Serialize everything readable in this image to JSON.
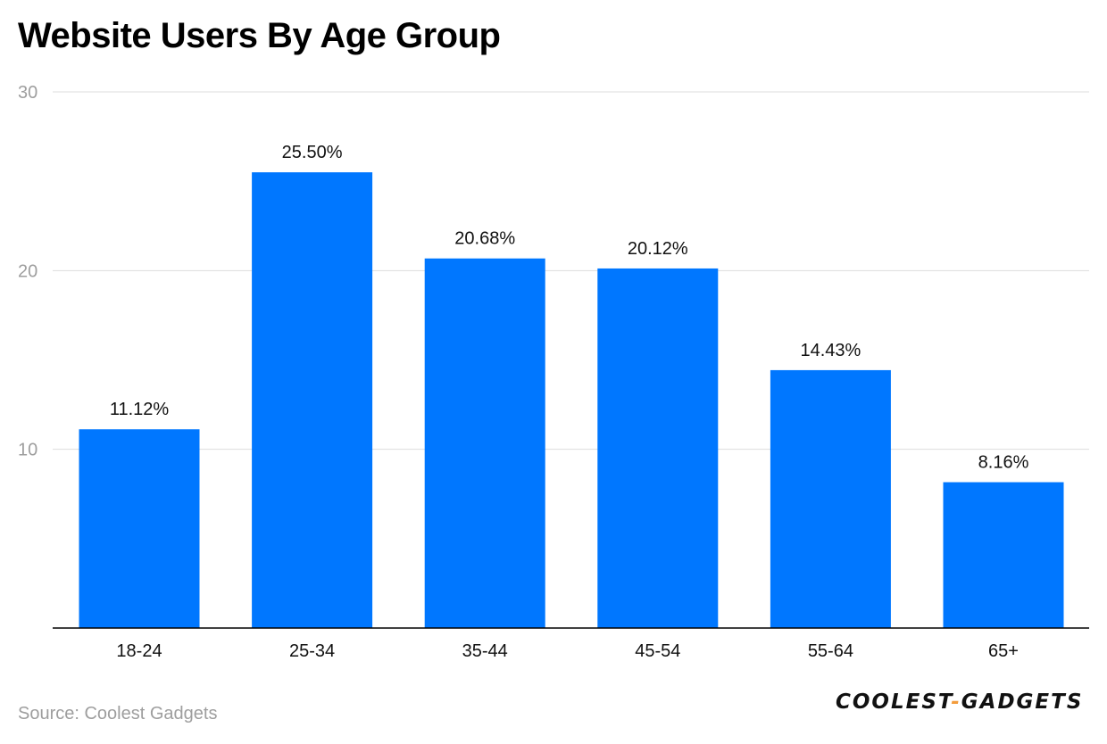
{
  "chart_data": {
    "type": "bar",
    "title": "Website Users By Age Group",
    "categories": [
      "18-24",
      "25-34",
      "35-44",
      "45-54",
      "55-64",
      "65+"
    ],
    "values": [
      11.12,
      25.5,
      20.68,
      20.12,
      14.43,
      8.16
    ],
    "value_labels": [
      "11.12%",
      "25.50%",
      "20.68%",
      "20.12%",
      "14.43%",
      "8.16%"
    ],
    "xlabel": "",
    "ylabel": "",
    "ylim": [
      0,
      30
    ],
    "yticks": [
      10,
      20,
      30
    ],
    "ytick_labels": [
      "10",
      "20",
      "30"
    ],
    "grid": true,
    "legend": "none",
    "bar_color": "#0077ff"
  },
  "footer": {
    "source": "Source: Coolest Gadgets"
  },
  "logo": {
    "part1": "COOLEST",
    "separator": "-",
    "part2": "GADGETS"
  },
  "colors": {
    "bar": "#0077ff",
    "grid": "#dddddd",
    "axis": "#000000",
    "tick_label": "#9e9e9e",
    "source_text": "#9e9e9e",
    "logo_accent": "#f39c3c"
  }
}
